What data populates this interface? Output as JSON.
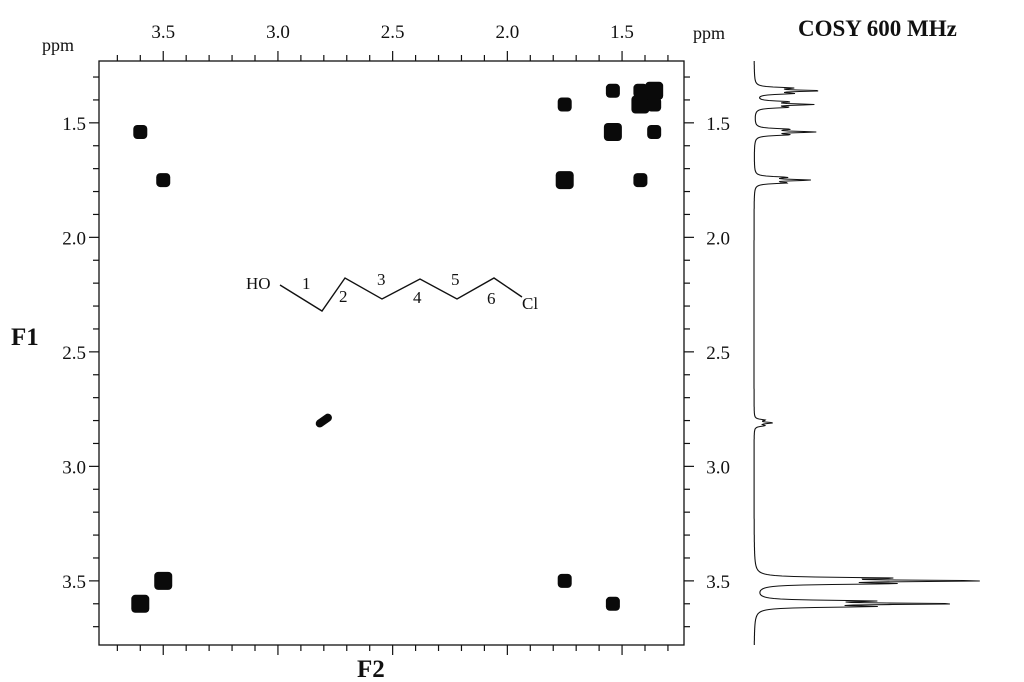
{
  "chart_data": {
    "type": "scatter",
    "title": "COSY 600 MHz",
    "xlabel": "F2",
    "ylabel": "F1",
    "x_unit": "ppm",
    "y_unit": "ppm",
    "x_range": [
      3.78,
      1.23
    ],
    "y_range": [
      1.23,
      3.78
    ],
    "x_axis_reversed": true,
    "x_ticks": [
      "3.5",
      "3.0",
      "2.5",
      "2.0",
      "1.5"
    ],
    "y_ticks": [
      "1.5",
      "2.0",
      "2.5",
      "3.0",
      "3.5"
    ],
    "molecule": {
      "labels": [
        "HO",
        "1",
        "2",
        "3",
        "4",
        "5",
        "6",
        "Cl"
      ],
      "name": "6-chlorohexan-1-ol"
    },
    "cross_peaks": [
      {
        "x": 3.6,
        "y": 1.54
      },
      {
        "x": 3.5,
        "y": 1.75
      },
      {
        "x": 1.75,
        "y": 1.42
      },
      {
        "x": 1.75,
        "y": 1.75
      },
      {
        "x": 1.54,
        "y": 1.36
      },
      {
        "x": 1.54,
        "y": 1.54
      },
      {
        "x": 1.42,
        "y": 1.36
      },
      {
        "x": 1.42,
        "y": 1.42
      },
      {
        "x": 1.42,
        "y": 1.75
      },
      {
        "x": 1.36,
        "y": 1.36
      },
      {
        "x": 1.36,
        "y": 1.42
      },
      {
        "x": 1.36,
        "y": 1.54
      },
      {
        "x": 2.8,
        "y": 2.8
      },
      {
        "x": 3.6,
        "y": 3.6
      },
      {
        "x": 3.5,
        "y": 3.5
      },
      {
        "x": 1.75,
        "y": 3.5
      },
      {
        "x": 1.54,
        "y": 3.6
      }
    ],
    "projection_1d": {
      "peaks": [
        {
          "ppm": 1.36,
          "intensity": 0.28
        },
        {
          "ppm": 1.42,
          "intensity": 0.25
        },
        {
          "ppm": 1.54,
          "intensity": 0.26
        },
        {
          "ppm": 1.75,
          "intensity": 0.24
        },
        {
          "ppm": 2.81,
          "intensity": 0.08
        },
        {
          "ppm": 3.5,
          "intensity": 1.0
        },
        {
          "ppm": 3.6,
          "intensity": 0.86
        }
      ]
    }
  }
}
